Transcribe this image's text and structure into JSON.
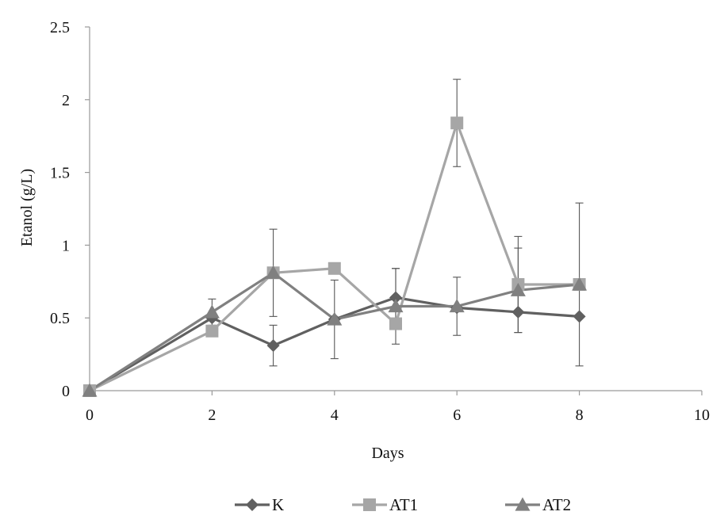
{
  "chart_data": {
    "type": "line",
    "title": "",
    "xlabel": "Days",
    "ylabel": "Etanol (g/L)",
    "xlim": [
      0,
      10
    ],
    "ylim": [
      0,
      2.5
    ],
    "x_ticks": [
      "0",
      "2",
      "4",
      "6",
      "8",
      "10"
    ],
    "y_ticks": [
      "0",
      "0.5",
      "1",
      "1.5",
      "2",
      "2.5"
    ],
    "grid": false,
    "legend_position": "bottom",
    "series": [
      {
        "name": "K",
        "color": "#606060",
        "marker": "diamond",
        "x": [
          0,
          2,
          3,
          4,
          5,
          6,
          7,
          8
        ],
        "y": [
          0,
          0.5,
          0.31,
          0.49,
          0.64,
          0.57,
          0.54,
          0.51
        ],
        "err": [
          0,
          0,
          0.14,
          0,
          0.2,
          0,
          0.14,
          0
        ]
      },
      {
        "name": "AT1",
        "color": "#a6a6a6",
        "marker": "square",
        "x": [
          0,
          2,
          3,
          4,
          5,
          6,
          7,
          8
        ],
        "y": [
          0,
          0.41,
          0.81,
          0.84,
          0.46,
          1.84,
          0.73,
          0.73
        ],
        "err": [
          0,
          0,
          0,
          0,
          0,
          0.3,
          0.33,
          0
        ]
      },
      {
        "name": "AT2",
        "color": "#808080",
        "marker": "triangle",
        "x": [
          0,
          2,
          3,
          4,
          5,
          6,
          7,
          8
        ],
        "y": [
          0,
          0.54,
          0.81,
          0.49,
          0.58,
          0.58,
          0.69,
          0.73
        ],
        "err": [
          0,
          0.09,
          0.3,
          0.27,
          0.26,
          0.2,
          0.29,
          0.56
        ]
      }
    ]
  }
}
